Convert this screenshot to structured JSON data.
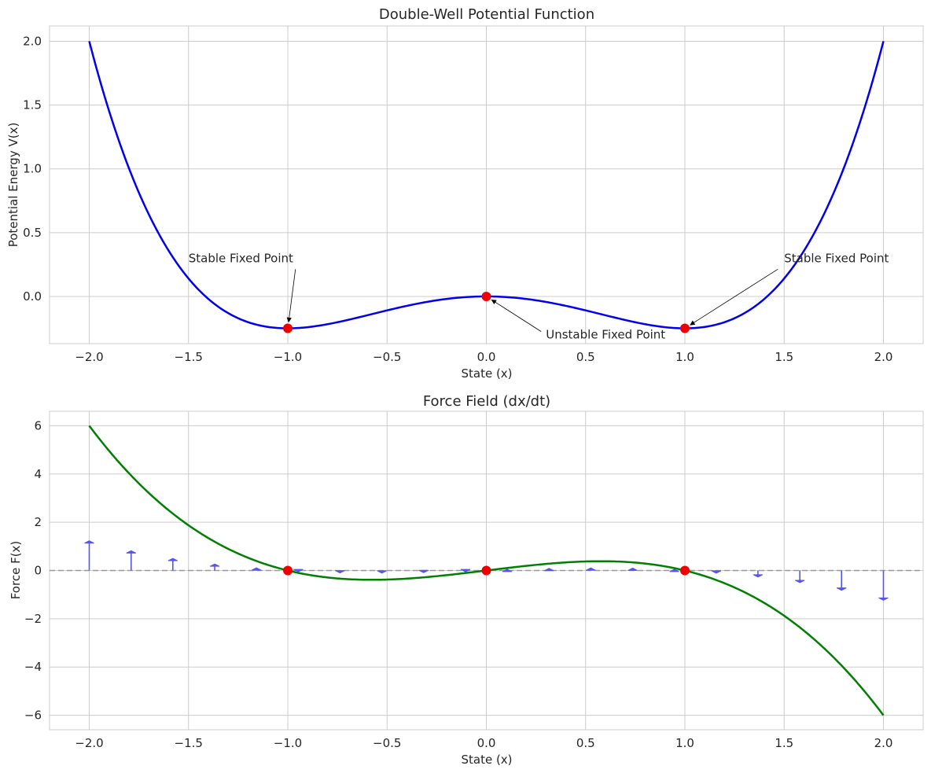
{
  "chart_data": [
    {
      "type": "line",
      "title": "Double-Well Potential Function",
      "xlabel": "State (x)",
      "ylabel": "Potential Energy V(x)",
      "xlim": [
        -2.2,
        2.2
      ],
      "ylim": [
        -0.37,
        2.12
      ],
      "xticks": [
        "−2.0",
        "−1.5",
        "−1.0",
        "−0.5",
        "0.0",
        "0.5",
        "1.0",
        "1.5",
        "2.0"
      ],
      "xtick_values": [
        -2.0,
        -1.5,
        -1.0,
        -0.5,
        0.0,
        0.5,
        1.0,
        1.5,
        2.0
      ],
      "yticks": [
        "0.0",
        "0.5",
        "1.0",
        "1.5",
        "2.0"
      ],
      "ytick_values": [
        0.0,
        0.5,
        1.0,
        1.5,
        2.0
      ],
      "grid": true,
      "series": [
        {
          "function": "V(x) = x^4/4 - x^2/2",
          "x": [
            -2.0,
            -1.75,
            -1.5,
            -1.25,
            -1.0,
            -0.75,
            -0.5,
            -0.25,
            0.0,
            0.25,
            0.5,
            0.75,
            1.0,
            1.25,
            1.5,
            1.75,
            2.0
          ],
          "y": [
            2.0,
            0.81,
            0.141,
            -0.171,
            -0.25,
            -0.202,
            -0.109,
            -0.03,
            0.0,
            -0.03,
            -0.109,
            -0.202,
            -0.25,
            -0.171,
            0.141,
            0.81,
            2.0
          ],
          "color": "#0000ee"
        }
      ],
      "fixed_points": {
        "x": [
          -1.0,
          0.0,
          1.0
        ],
        "y": [
          -0.25,
          0.0,
          -0.25
        ],
        "color": "#ee0000"
      },
      "annotations": [
        {
          "text": "Stable Fixed Point",
          "x": -1.0,
          "y": -0.25,
          "text_x": -1.5,
          "text_y": 0.3
        },
        {
          "text": "Unstable Fixed Point",
          "x": 0.0,
          "y": 0.0,
          "text_x": 0.3,
          "text_y": -0.3
        },
        {
          "text": "Stable Fixed Point",
          "x": 1.0,
          "y": -0.25,
          "text_x": 1.5,
          "text_y": 0.3
        }
      ]
    },
    {
      "type": "line",
      "title": "Force Field (dx/dt)",
      "xlabel": "State (x)",
      "ylabel": "Force F(x)",
      "xlim": [
        -2.2,
        2.2
      ],
      "ylim": [
        -6.6,
        6.6
      ],
      "xticks": [
        "−2.0",
        "−1.5",
        "−1.0",
        "−0.5",
        "0.0",
        "0.5",
        "1.0",
        "1.5",
        "2.0"
      ],
      "xtick_values": [
        -2.0,
        -1.5,
        -1.0,
        -0.5,
        0.0,
        0.5,
        1.0,
        1.5,
        2.0
      ],
      "yticks": [
        "−6",
        "−4",
        "−2",
        "0",
        "2",
        "4",
        "6"
      ],
      "ytick_values": [
        -6,
        -4,
        -2,
        0,
        2,
        4,
        6
      ],
      "grid": true,
      "series": [
        {
          "function": "F(x) = x - x^3",
          "x": [
            -2.0,
            -1.5,
            -1.0,
            -0.577,
            0.0,
            0.577,
            1.0,
            1.5,
            2.0
          ],
          "y": [
            6.0,
            1.875,
            0.0,
            -0.385,
            0.0,
            0.385,
            0.0,
            -1.875,
            -6.0
          ],
          "color": "#008000"
        }
      ],
      "zero_line": {
        "y": 0,
        "style": "dashed",
        "color": "#999999"
      },
      "quiver": {
        "x": [
          -2.0,
          -1.789,
          -1.579,
          -1.368,
          -1.158,
          -0.947,
          -0.737,
          -0.526,
          -0.316,
          -0.105,
          0.105,
          0.316,
          0.526,
          0.737,
          0.947,
          1.158,
          1.368,
          1.579,
          1.789,
          2.0
        ],
        "scale": 0.2,
        "color": "#5555ee"
      },
      "fixed_points": {
        "x": [
          -1.0,
          0.0,
          1.0
        ],
        "y": [
          0,
          0,
          0
        ],
        "color": "#ee0000"
      }
    }
  ]
}
